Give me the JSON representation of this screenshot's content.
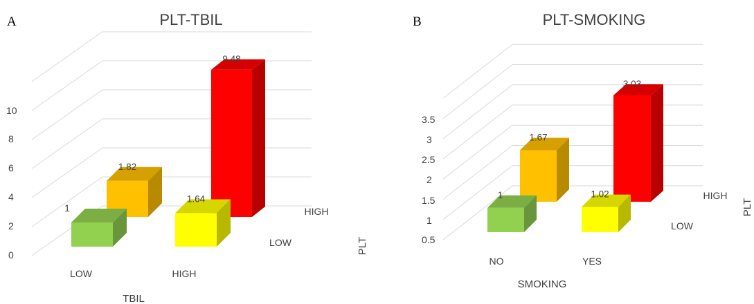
{
  "chart_data": [
    {
      "panel": "A",
      "type": "bar",
      "title": "PLT-TBIL",
      "xlabel": "TBIL",
      "zlabel": "PLT",
      "categories": [
        "LOW",
        "HIGH"
      ],
      "depth_categories": [
        "LOW",
        "HIGH"
      ],
      "yticks": [
        "0",
        "2",
        "4",
        "6",
        "8",
        "10"
      ],
      "ylim": [
        0,
        12
      ],
      "series": [
        {
          "name": "LOW",
          "values": [
            1,
            1.64
          ],
          "values_label": [
            "1",
            "1.64"
          ]
        },
        {
          "name": "HIGH",
          "values": [
            1.82,
            9.48
          ],
          "values_label": [
            "1.82",
            "9.48"
          ]
        }
      ],
      "colors": {
        "green": "#92d050",
        "orange": "#ffc000",
        "yellow": "#ffff00",
        "red": "#ff0000"
      }
    },
    {
      "panel": "B",
      "type": "bar",
      "title": "PLT-SMOKING",
      "xlabel": "SMOKING",
      "zlabel": "PLT",
      "categories": [
        "NO",
        "YES"
      ],
      "depth_categories": [
        "LOW",
        "HIGH"
      ],
      "yticks": [
        "0.5",
        "1",
        "1.5",
        "2",
        "2.5",
        "3",
        "3.5"
      ],
      "ylim": [
        0.5,
        4.5
      ],
      "series": [
        {
          "name": "LOW",
          "values": [
            1,
            1.02
          ],
          "values_label": [
            "1",
            "1.02"
          ]
        },
        {
          "name": "HIGH",
          "values": [
            1.67,
            3.03
          ],
          "values_label": [
            "1.67",
            "3.03"
          ]
        }
      ],
      "colors": {
        "green": "#92d050",
        "orange": "#ffc000",
        "yellow": "#ffff00",
        "red": "#ff0000"
      }
    }
  ]
}
